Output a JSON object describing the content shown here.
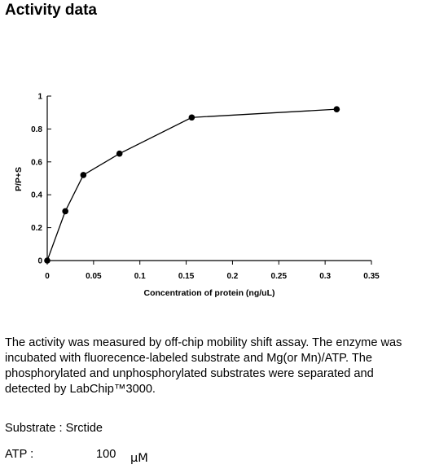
{
  "page": {
    "title": "Activity data",
    "description": "The activity was measured by off-chip mobility shift assay. The enzyme was incubated with fluorecence-labeled  substrate and Mg(or Mn)/ATP. The phosphorylated and unphosphorylated substrates were separated and detected by LabChip™3000.",
    "substrate": "Substrate : Srctide",
    "atp_label": "ATP :",
    "atp_value": "100",
    "atp_unit": "μM"
  },
  "chart_data": {
    "type": "line",
    "title": "",
    "xlabel": "Concentration of protein (ng/uL)",
    "ylabel": "P/P+S",
    "xlim": [
      0,
      0.35
    ],
    "ylim": [
      0,
      1
    ],
    "x_ticks": [
      "0",
      "0.05",
      "0.1",
      "0.15",
      "0.2",
      "0.25",
      "0.3",
      "0.35"
    ],
    "y_ticks": [
      "0",
      "0.2",
      "0.4",
      "0.6",
      "0.8",
      "1"
    ],
    "grid": false,
    "series": [
      {
        "x": [
          0,
          0.0195,
          0.039,
          0.078,
          0.156,
          0.3125
        ],
        "y": [
          0,
          0.3,
          0.52,
          0.65,
          0.87,
          0.92
        ],
        "marker": "circle",
        "color": "#000000"
      }
    ]
  }
}
